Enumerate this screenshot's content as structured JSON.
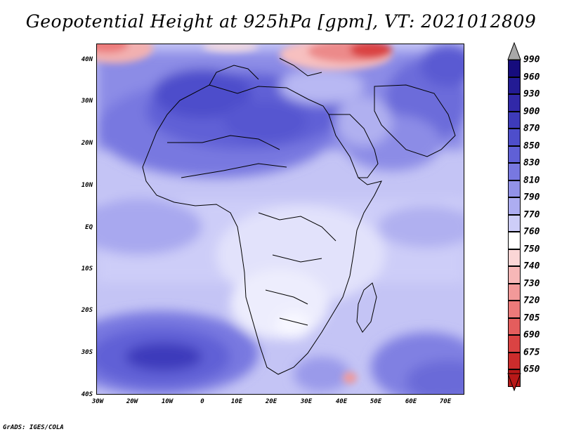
{
  "title": "Geopotential Height at 925hPa [gpm], VT: 2021012809",
  "credit": "GrADS: IGES/COLA",
  "latitude_labels": [
    "40N",
    "30N",
    "20N",
    "10N",
    "EQ",
    "10S",
    "20S",
    "30S",
    "40S"
  ],
  "longitude_labels": [
    "30W",
    "20W",
    "10W",
    "0",
    "10E",
    "20E",
    "30E",
    "40E",
    "50E",
    "60E",
    "70E"
  ],
  "colorbar": {
    "levels": [
      "990",
      "960",
      "930",
      "900",
      "870",
      "850",
      "830",
      "810",
      "790",
      "770",
      "760",
      "750",
      "740",
      "730",
      "720",
      "705",
      "690",
      "675",
      "650"
    ],
    "colors": [
      "#160c7d",
      "#231b94",
      "#3128a8",
      "#3e3bbb",
      "#4e4ecb",
      "#6060d6",
      "#7878e0",
      "#9292e8",
      "#adadf1",
      "#cdcdf8",
      "#ffffff",
      "#fbd6d6",
      "#f7b7b7",
      "#f29999",
      "#ec7a7a",
      "#e45d5d",
      "#da4343",
      "#cc2c2c",
      "#b81818"
    ],
    "top_arrow_color": "#a8a8a8",
    "bottom_arrow_color": "#b81818"
  }
}
